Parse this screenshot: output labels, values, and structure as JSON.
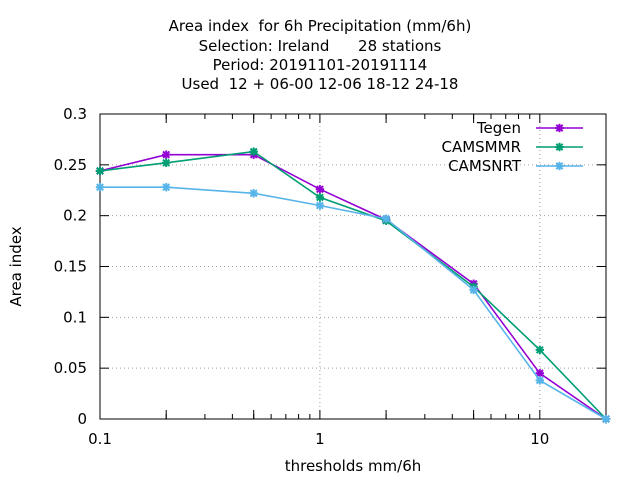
{
  "chart_data": {
    "type": "line",
    "title_lines": [
      "Area index  for 6h Precipitation (mm/6h)",
      "Selection: Ireland      28 stations",
      "Period: 20191101-20191114",
      "Used  12 + 06-00 12-06 18-12 24-18"
    ],
    "xlabel": "thresholds mm/6h",
    "ylabel": "Area index",
    "xscale": "log",
    "xlim": [
      0.1,
      20
    ],
    "ylim": [
      0,
      0.3
    ],
    "xticks": [
      {
        "value": 0.1,
        "label": "0.1"
      },
      {
        "value": 1,
        "label": "1"
      },
      {
        "value": 10,
        "label": "10"
      }
    ],
    "xminor": [
      0.2,
      0.5,
      2,
      5,
      20
    ],
    "yticks": [
      {
        "value": 0,
        "label": "0"
      },
      {
        "value": 0.05,
        "label": "0.05"
      },
      {
        "value": 0.1,
        "label": "0.1"
      },
      {
        "value": 0.15,
        "label": "0.15"
      },
      {
        "value": 0.2,
        "label": "0.2"
      },
      {
        "value": 0.25,
        "label": "0.25"
      },
      {
        "value": 0.3,
        "label": "0.3"
      }
    ],
    "grid": true,
    "legend_position": "top-right",
    "x": [
      0.1,
      0.2,
      0.5,
      1,
      2,
      5,
      10,
      20
    ],
    "series": [
      {
        "name": "Tegen",
        "color": "#9400d3",
        "values": [
          0.244,
          0.26,
          0.26,
          0.226,
          0.196,
          0.133,
          0.045,
          0.0
        ]
      },
      {
        "name": "CAMSMMR",
        "color": "#009e73",
        "values": [
          0.244,
          0.252,
          0.263,
          0.218,
          0.195,
          0.13,
          0.068,
          0.0
        ]
      },
      {
        "name": "CAMSNRT",
        "color": "#56b4e9",
        "values": [
          0.228,
          0.228,
          0.222,
          0.21,
          0.197,
          0.127,
          0.038,
          0.0
        ]
      }
    ]
  }
}
